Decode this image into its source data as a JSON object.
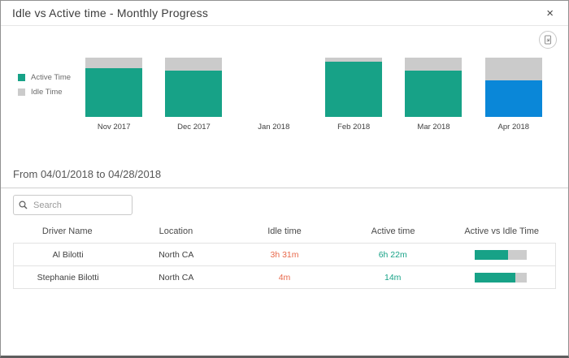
{
  "dialog": {
    "title": "Idle vs Active time - Monthly Progress",
    "close_glyph": "×"
  },
  "icons": {
    "close": "x-glyph",
    "export": "page-with-arrow-in-circle",
    "search": "magnifier"
  },
  "chart_data": {
    "type": "bar",
    "subtype": "stacked-100-percent",
    "title": "Idle vs Active time - Monthly Progress",
    "categories": [
      "Nov 2017",
      "Dec 2017",
      "Jan 2018",
      "Feb 2018",
      "Mar 2018",
      "Apr 2018"
    ],
    "series": [
      {
        "name": "Active Time",
        "color": "#17a287",
        "values": [
          82,
          78,
          0,
          93,
          78,
          62
        ]
      },
      {
        "name": "Idle Time",
        "color": "#cbcbcb",
        "values": [
          18,
          22,
          0,
          7,
          22,
          38
        ]
      }
    ],
    "unit": "percent-of-month",
    "ylim": [
      0,
      100
    ],
    "grid": false,
    "legend_position": "left",
    "selected_index": 5,
    "selected_color": "#0a87d8",
    "note": "Jan 2018 has no data; Apr 2018 active segment highlighted blue (selected month)"
  },
  "filters": {
    "date_range": "From 04/01/2018 to 04/28/2018",
    "search_placeholder": "Search"
  },
  "table": {
    "columns": [
      "Driver Name",
      "Location",
      "Idle time",
      "Active time",
      "Active vs Idle Time"
    ],
    "rows": [
      {
        "driver": "Al Bilotti",
        "location": "North CA",
        "idle": "3h 31m",
        "active": "6h 22m",
        "active_pct": 64
      },
      {
        "driver": "Stephanie Bilotti",
        "location": "North CA",
        "idle": "4m",
        "active": "14m",
        "active_pct": 78
      }
    ]
  },
  "colors": {
    "active_teal": "#17a287",
    "idle_gray": "#cbcbcb",
    "selected_blue": "#0a87d8",
    "idle_text_orange": "#e8684a",
    "active_text_teal": "#17a287"
  }
}
